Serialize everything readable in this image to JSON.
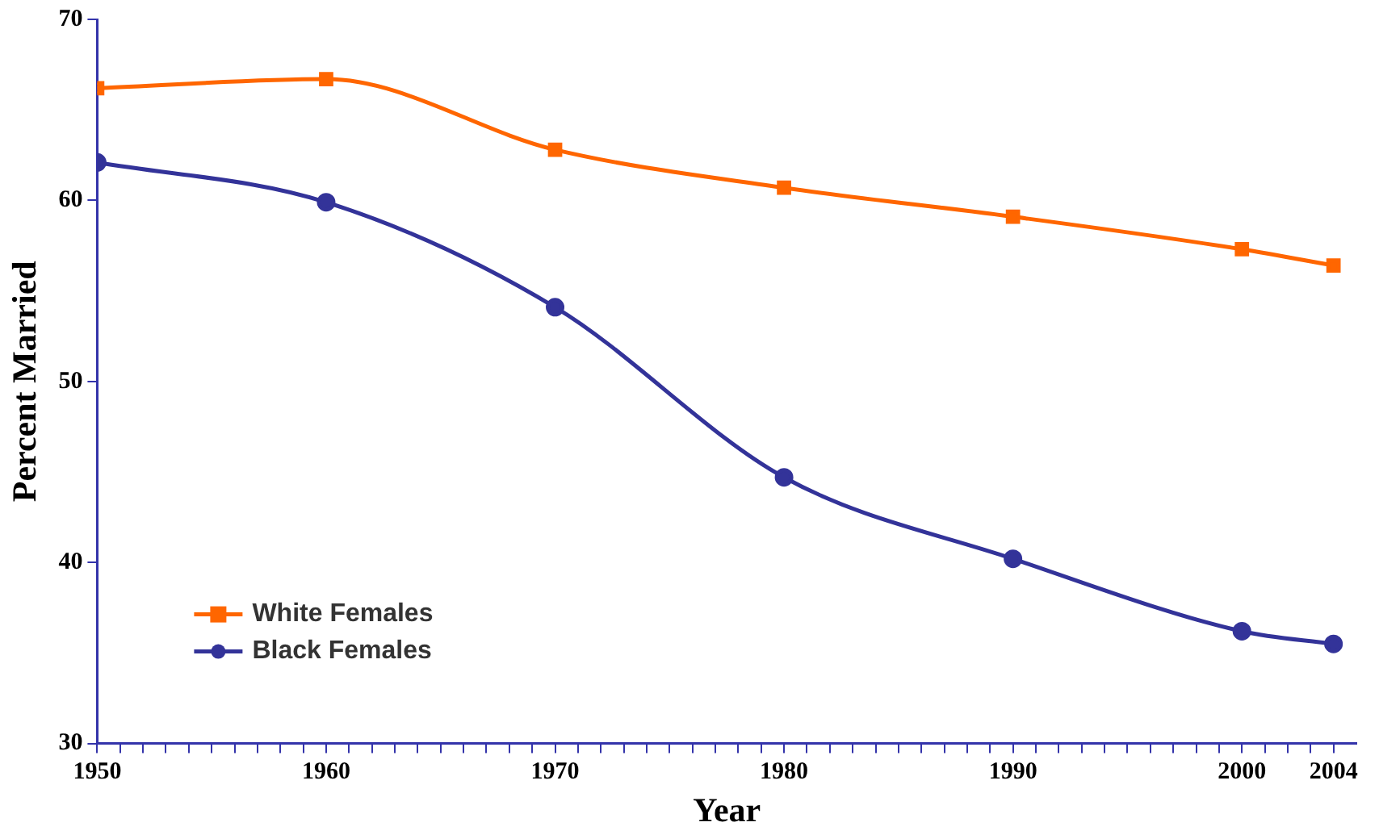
{
  "chart_data": {
    "type": "line",
    "xlabel": "Year",
    "ylabel": "Percent Married",
    "legend": "bottom left",
    "grid": false,
    "line_style": "solid",
    "x": [
      1950,
      1960,
      1970,
      1980,
      1990,
      2000,
      2004
    ],
    "series": [
      {
        "name": "White Females",
        "color": "#ff6600",
        "marker": "square",
        "values": [
          66.2,
          66.7,
          62.8,
          60.7,
          59.1,
          57.3,
          56.4
        ]
      },
      {
        "name": "Black Females",
        "color": "#333399",
        "marker": "circle",
        "values": [
          62.1,
          59.9,
          54.1,
          44.7,
          40.2,
          36.2,
          35.5
        ]
      }
    ],
    "xlim": [
      1950,
      2005
    ],
    "xticks": [
      1950,
      {
        "value": 1951,
        "label": null
      },
      {
        "value": 1952,
        "label": null
      },
      {
        "value": 1953,
        "label": null
      },
      {
        "value": 1954,
        "label": null
      },
      {
        "value": 1955,
        "label": null
      },
      {
        "value": 1956,
        "label": null
      },
      {
        "value": 1957,
        "label": null
      },
      {
        "value": 1958,
        "label": null
      },
      {
        "value": 1959,
        "label": null
      },
      1960,
      {
        "value": 1961,
        "label": null
      },
      {
        "value": 1962,
        "label": null
      },
      {
        "value": 1963,
        "label": null
      },
      {
        "value": 1964,
        "label": null
      },
      {
        "value": 1965,
        "label": null
      },
      {
        "value": 1966,
        "label": null
      },
      {
        "value": 1967,
        "label": null
      },
      {
        "value": 1968,
        "label": null
      },
      {
        "value": 1969,
        "label": null
      },
      1970,
      {
        "value": 1971,
        "label": null
      },
      {
        "value": 1972,
        "label": null
      },
      {
        "value": 1973,
        "label": null
      },
      {
        "value": 1974,
        "label": null
      },
      {
        "value": 1975,
        "label": null
      },
      {
        "value": 1976,
        "label": null
      },
      {
        "value": 1977,
        "label": null
      },
      {
        "value": 1978,
        "label": null
      },
      {
        "value": 1979,
        "label": null
      },
      1980,
      {
        "value": 1981,
        "label": null
      },
      {
        "value": 1982,
        "label": null
      },
      {
        "value": 1983,
        "label": null
      },
      {
        "value": 1984,
        "label": null
      },
      {
        "value": 1985,
        "label": null
      },
      {
        "value": 1986,
        "label": null
      },
      {
        "value": 1987,
        "label": null
      },
      {
        "value": 1988,
        "label": null
      },
      {
        "value": 1989,
        "label": null
      },
      1990,
      {
        "value": 1991,
        "label": null
      },
      {
        "value": 1992,
        "label": null
      },
      {
        "value": 1993,
        "label": null
      },
      {
        "value": 1994,
        "label": null
      },
      {
        "value": 1995,
        "label": null
      },
      {
        "value": 1996,
        "label": null
      },
      {
        "value": 1997,
        "label": null
      },
      {
        "value": 1998,
        "label": null
      },
      {
        "value": 1999,
        "label": null
      },
      2000,
      {
        "value": 2001,
        "label": null
      },
      {
        "value": 2002,
        "label": null
      },
      {
        "value": 2003,
        "label": null
      },
      2004
    ],
    "ylim": [
      30,
      70
    ],
    "yticks": [
      30,
      40,
      50,
      60,
      70
    ]
  }
}
